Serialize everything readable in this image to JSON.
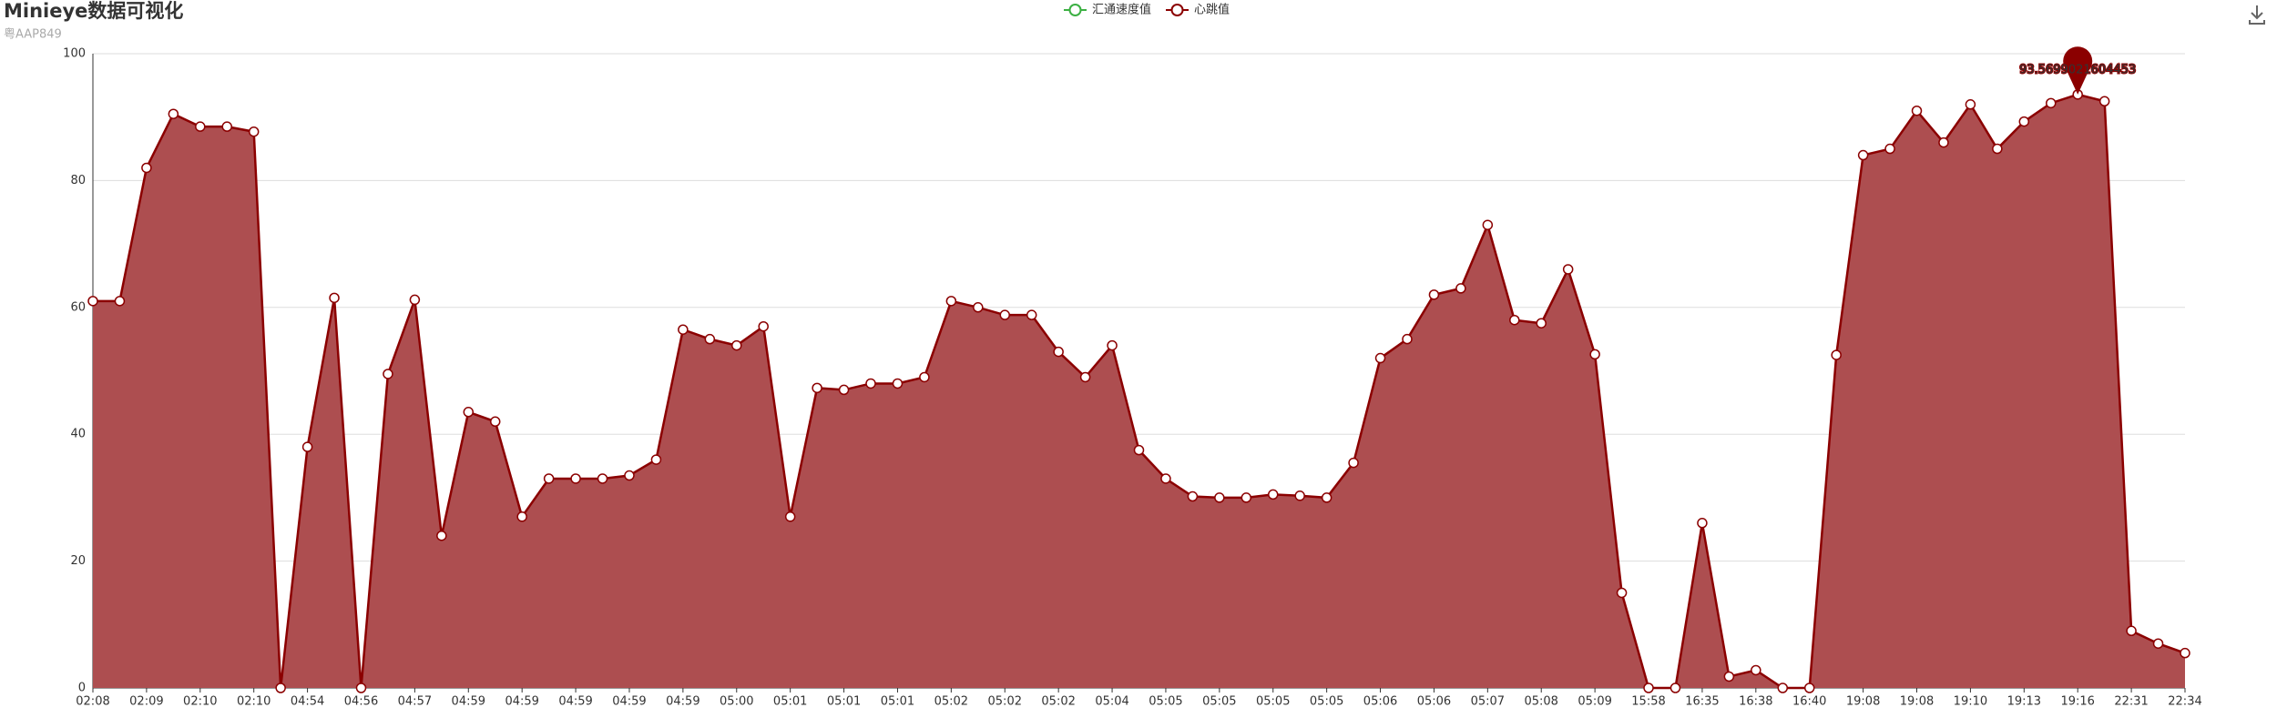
{
  "chart_data": {
    "type": "line",
    "title": "Minieye数据可视化",
    "subtitle": "粤AAP849",
    "categories": [
      "02:08",
      null,
      "02:09",
      null,
      "02:10",
      null,
      "02:10",
      null,
      "04:54",
      null,
      "04:56",
      null,
      "04:57",
      null,
      "04:59",
      null,
      "04:59",
      null,
      "04:59",
      null,
      "04:59",
      null,
      "04:59",
      null,
      "05:00",
      null,
      "05:01",
      null,
      "05:01",
      null,
      "05:01",
      null,
      "05:02",
      null,
      "05:02",
      null,
      "05:02",
      null,
      "05:04",
      null,
      "05:05",
      null,
      "05:05",
      null,
      "05:05",
      null,
      "05:05",
      null,
      "05:06",
      null,
      "05:06",
      null,
      "05:07",
      null,
      "05:08",
      null,
      "05:09",
      null,
      "15:58",
      null,
      "16:35",
      null,
      "16:38",
      null,
      "16:40",
      null,
      "19:08",
      null,
      "19:08",
      null,
      "19:10",
      null,
      "19:13",
      null,
      "19:16",
      null,
      "22:31",
      null,
      "22:34"
    ],
    "series": [
      {
        "name": "汇通速度值",
        "color": "#3cb043",
        "values": [
          null,
          null,
          null,
          null,
          null,
          null,
          null,
          null,
          null,
          null,
          null,
          null,
          null,
          null,
          null,
          null,
          null,
          null,
          null,
          null,
          null,
          null,
          null,
          null,
          null,
          null,
          null,
          null,
          null,
          null,
          null,
          null,
          null,
          null,
          null,
          null,
          null,
          null,
          null,
          null,
          null,
          null,
          null,
          null,
          null,
          null,
          null,
          null,
          null,
          null,
          null,
          null,
          null,
          null,
          null,
          null,
          null,
          null,
          null,
          null,
          null,
          null,
          null,
          null,
          null,
          null,
          null,
          null,
          null,
          null,
          null,
          null,
          null,
          null,
          null,
          null,
          null,
          null,
          null
        ]
      },
      {
        "name": "心跳值",
        "color": "#8b0000",
        "area_color": "#ad4e50",
        "values": [
          61,
          61,
          82,
          90.5,
          88.5,
          88.5,
          87.7,
          0,
          38,
          61.5,
          0,
          49.5,
          61.2,
          24,
          43.5,
          42,
          27,
          33,
          33,
          33,
          33.5,
          36,
          56.5,
          55,
          54,
          57,
          27,
          47.3,
          47,
          48,
          48,
          49,
          61,
          60,
          58.8,
          58.8,
          53,
          49,
          54,
          37.5,
          33,
          30.2,
          30,
          30,
          30.5,
          30.3,
          30,
          35.5,
          52,
          55,
          62,
          63,
          73,
          58,
          57.5,
          66,
          52.6,
          15,
          0,
          0,
          26,
          1.8,
          2.8,
          0,
          0,
          52.5,
          84,
          85,
          91,
          86,
          92,
          85,
          89.3,
          92.2,
          93.5699021604453,
          92.5,
          9,
          7,
          5.5
        ]
      }
    ],
    "max_point": {
      "series": 1,
      "index": 74
    },
    "ylim": [
      0,
      100
    ],
    "yticks": [
      0,
      20,
      40,
      60,
      80,
      100
    ],
    "grid": true,
    "legend": "top"
  }
}
